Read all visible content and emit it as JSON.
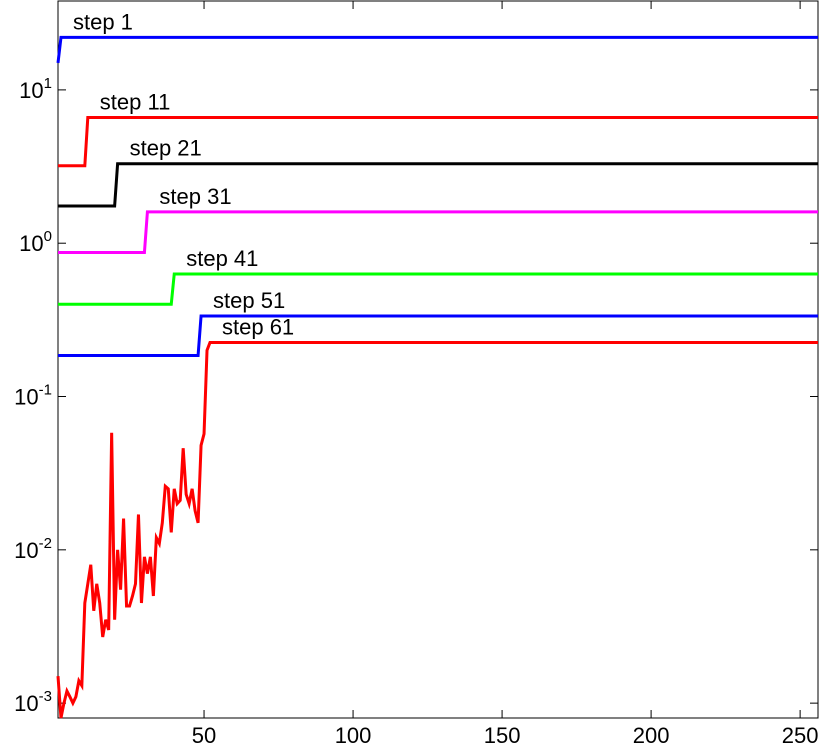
{
  "chart_data": {
    "type": "line",
    "log_y": true,
    "xlim": [
      1,
      256
    ],
    "xticks": [
      50,
      100,
      150,
      200,
      250
    ],
    "ylim": [
      0.0008,
      38
    ],
    "yticks": [
      {
        "value": 0.001,
        "label": "10^-3"
      },
      {
        "value": 0.01,
        "label": "10^-2"
      },
      {
        "value": 0.1,
        "label": "10^-1"
      },
      {
        "value": 1,
        "label": "10^0"
      },
      {
        "value": 10,
        "label": "10^1"
      }
    ],
    "series": [
      {
        "name": "step 1",
        "color": "#0000ff",
        "x": [
          1,
          2,
          256
        ],
        "values": [
          15,
          22,
          22
        ]
      },
      {
        "name": "step 11",
        "color": "#ff0000",
        "x": [
          1,
          10,
          11,
          256
        ],
        "values": [
          3.2,
          3.2,
          6.6,
          6.6
        ]
      },
      {
        "name": "step 21",
        "color": "#000000",
        "x": [
          1,
          20,
          21,
          256
        ],
        "values": [
          1.75,
          1.75,
          3.3,
          3.3
        ]
      },
      {
        "name": "step 31",
        "color": "#ff00ff",
        "x": [
          1,
          30,
          31,
          256
        ],
        "values": [
          0.87,
          0.87,
          1.6,
          1.6
        ]
      },
      {
        "name": "step 41",
        "color": "#00ff00",
        "x": [
          1,
          39,
          40,
          256
        ],
        "values": [
          0.4,
          0.4,
          0.63,
          0.63
        ]
      },
      {
        "name": "step 51",
        "color": "#0000ff",
        "x": [
          1,
          48,
          49,
          256
        ],
        "values": [
          0.185,
          0.185,
          0.335,
          0.335
        ]
      },
      {
        "name": "step 61",
        "color": "#ff0000",
        "x": [
          1,
          2,
          3,
          4,
          5,
          6,
          7,
          8,
          9,
          10,
          11,
          12,
          13,
          14,
          15,
          16,
          17,
          18,
          19,
          20,
          21,
          22,
          23,
          24,
          25,
          26,
          27,
          28,
          29,
          30,
          31,
          32,
          33,
          34,
          35,
          36,
          37,
          38,
          39,
          40,
          41,
          42,
          43,
          44,
          45,
          46,
          47,
          48,
          49,
          50,
          51,
          52,
          256
        ],
        "values": [
          0.0015,
          0.0008,
          0.001,
          0.0012,
          0.0011,
          0.001,
          0.0011,
          0.0014,
          0.0013,
          0.0045,
          0.006,
          0.008,
          0.004,
          0.006,
          0.0045,
          0.0027,
          0.0035,
          0.003,
          0.058,
          0.0035,
          0.01,
          0.0055,
          0.016,
          0.0043,
          0.0043,
          0.005,
          0.006,
          0.017,
          0.0045,
          0.009,
          0.007,
          0.009,
          0.005,
          0.012,
          0.011,
          0.015,
          0.026,
          0.025,
          0.013,
          0.025,
          0.02,
          0.021,
          0.046,
          0.023,
          0.02,
          0.025,
          0.018,
          0.015,
          0.048,
          0.057,
          0.2,
          0.225,
          0.225
        ]
      }
    ]
  }
}
